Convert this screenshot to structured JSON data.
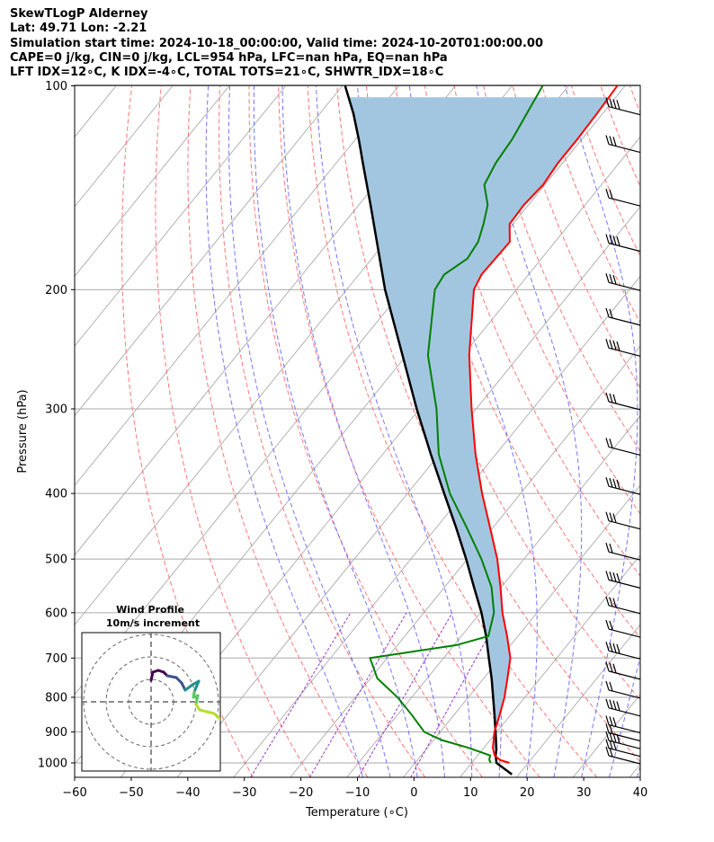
{
  "header": {
    "lines": [
      "SkewTLogP Alderney",
      "Lat: 49.71   Lon: -2.21",
      "Simulation start time: 2024-10-18_00:00:00, Valid time: 2024-10-20T01:00:00.00",
      "CAPE=0 j/kg, CIN=0 j/kg, LCL=954 hPa, LFC=nan hPa, EQ=nan hPa",
      "LFT IDX=12∘C, K IDX=-4∘C, TOTAL TOTS=21∘C, SHWTR_IDX=18∘C"
    ]
  },
  "chart_data": {
    "type": "line",
    "subtype": "skew-t log-p",
    "xlabel": "Temperature (∘C)",
    "ylabel": "Pressure (hPa)",
    "xlim": [
      -60,
      40
    ],
    "ylim": [
      1050,
      100
    ],
    "y_scale": "log",
    "x_ticks": [
      -60,
      -50,
      -40,
      -30,
      -20,
      -10,
      0,
      10,
      20,
      30,
      40
    ],
    "x_tick_labels": [
      "−60",
      "−50",
      "−40",
      "−30",
      "−20",
      "−10",
      "0",
      "10",
      "20",
      "30",
      "40"
    ],
    "y_ticks": [
      1000,
      900,
      800,
      700,
      600,
      500,
      400,
      300,
      200,
      100
    ],
    "y_tick_labels": [
      "1000",
      "900",
      "800",
      "700",
      "600",
      "500",
      "400",
      "300",
      "200",
      "100"
    ],
    "grid": true,
    "colors": {
      "temperature": "#ff0000",
      "dewpoint": "#008000",
      "parcel": "#000000",
      "cape_fill": "#a3c6e0",
      "dry_adiabats": "#ff6666",
      "moist_adiabats": "#6666ff",
      "mixing_ratio": "#9933cc",
      "isotherms": "#aaaaaa",
      "wind_barbs": "#000000"
    },
    "series": [
      {
        "key": "temperature",
        "pressure": [
          1000,
          990,
          975,
          950,
          925,
          900,
          850,
          800,
          750,
          700,
          650,
          600,
          550,
          500,
          450,
          400,
          350,
          300,
          250,
          200,
          190,
          170,
          160,
          150,
          140,
          130,
          120,
          110,
          100
        ],
        "temp": [
          16.7,
          14.6,
          13.0,
          11.6,
          10.6,
          9.6,
          8.1,
          6.4,
          4.2,
          1.8,
          -1.9,
          -6.1,
          -10.1,
          -14.7,
          -20.4,
          -26.8,
          -33.6,
          -40.8,
          -48.9,
          -57.5,
          -58.3,
          -58.0,
          -60.6,
          -60.8,
          -60.3,
          -60.8,
          -60.8,
          -61.0,
          -61.4
        ]
      },
      {
        "key": "dewpoint",
        "pressure": [
          1000,
          990,
          975,
          950,
          925,
          900,
          850,
          800,
          750,
          700,
          670,
          650,
          600,
          550,
          500,
          450,
          400,
          350,
          300,
          250,
          200,
          190,
          180,
          170,
          160,
          150,
          140,
          130,
          120,
          110,
          100
        ],
        "temp": [
          13.4,
          12.7,
          12.2,
          7.3,
          1.4,
          -2.8,
          -7.4,
          -12.5,
          -18.8,
          -23.0,
          -9.6,
          -5.2,
          -7.6,
          -11.7,
          -17.5,
          -24.5,
          -32.5,
          -40.1,
          -47.0,
          -56.2,
          -64.4,
          -64.9,
          -63.1,
          -63.6,
          -65.2,
          -67.2,
          -70.7,
          -71.8,
          -72.3,
          -73.4,
          -74.6
        ]
      },
      {
        "key": "parcel",
        "pressure": [
          1040,
          1000,
          975,
          954,
          900,
          850,
          800,
          750,
          700,
          650,
          600,
          550,
          500,
          450,
          400,
          350,
          300,
          250,
          200,
          170,
          150,
          130,
          120,
          110,
          100
        ],
        "temp": [
          18.8,
          14.4,
          13.2,
          12.4,
          9.8,
          7.2,
          4.4,
          1.4,
          -2.0,
          -5.6,
          -9.8,
          -14.8,
          -20.2,
          -26.4,
          -33.5,
          -41.5,
          -50.5,
          -60.7,
          -73.2,
          -81.5,
          -87.9,
          -95.3,
          -99.4,
          -104.0,
          -109.5
        ]
      }
    ],
    "wind_barb_pressures": [
      1000,
      975,
      950,
      925,
      900,
      850,
      800,
      750,
      700,
      650,
      600,
      550,
      500,
      450,
      400,
      350,
      300,
      250,
      225,
      200,
      175,
      150,
      125,
      110
    ],
    "inset": {
      "title": "Wind Profile",
      "subtitle": "10m/s increment",
      "hodograph_colors": [
        "#440154",
        "#3b528b",
        "#21908d",
        "#5dc863",
        "#b5de2b"
      ]
    }
  }
}
